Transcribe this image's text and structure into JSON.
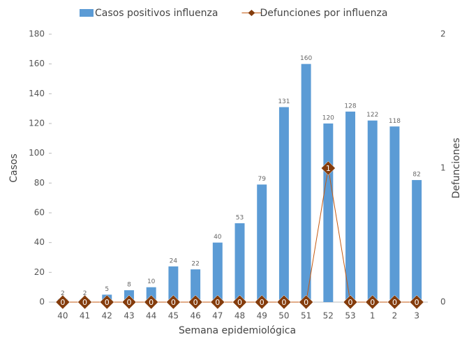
{
  "chart_data": {
    "type": "bar",
    "categories": [
      "40",
      "41",
      "42",
      "43",
      "44",
      "45",
      "46",
      "47",
      "48",
      "49",
      "50",
      "51",
      "52",
      "53",
      "1",
      "2",
      "3"
    ],
    "series": [
      {
        "name": "Casos positivos influenza",
        "type": "bar",
        "color": "#5b9bd5",
        "values": [
          2,
          2,
          5,
          8,
          10,
          24,
          22,
          40,
          53,
          79,
          131,
          160,
          120,
          128,
          122,
          118,
          82
        ]
      },
      {
        "name": "Defunciones por influenza",
        "type": "line",
        "axis": "y2",
        "color": "#c55a11",
        "marker_color": "#843c0c",
        "values": [
          0,
          0,
          0,
          0,
          0,
          0,
          0,
          0,
          0,
          0,
          0,
          0,
          1,
          0,
          0,
          0,
          0
        ]
      }
    ],
    "xlabel": "Semana epidemiológica",
    "ylabel": "Casos",
    "y2label": "Defunciones",
    "ylim": [
      0,
      180
    ],
    "yticks": [
      0,
      20,
      40,
      60,
      80,
      100,
      120,
      140,
      160,
      180
    ],
    "y2lim": [
      0,
      2
    ],
    "y2ticks": [
      0,
      1,
      2
    ],
    "legend": "top"
  }
}
